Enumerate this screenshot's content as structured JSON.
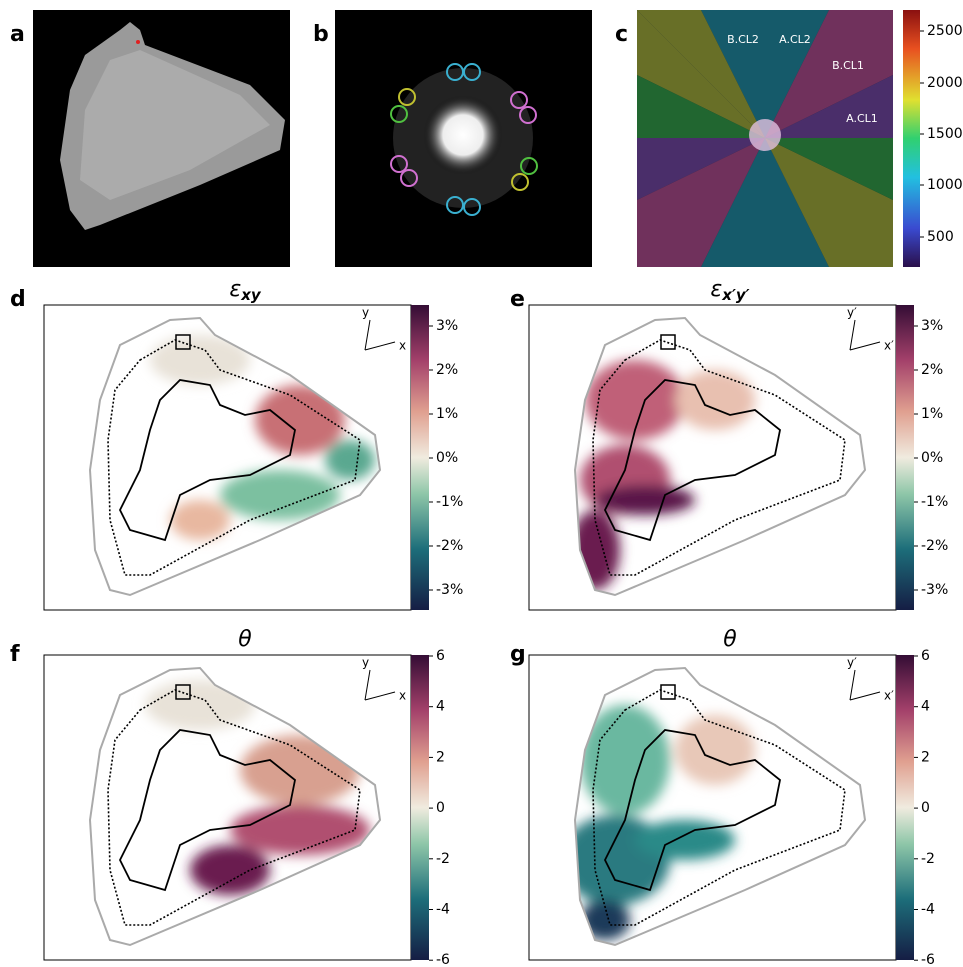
{
  "panels": [
    {
      "label": "a"
    },
    {
      "label": "b"
    },
    {
      "label": "c",
      "sectors": [
        "B.CL2",
        "A.CL2",
        "B.CL1",
        "A.CL1"
      ],
      "colorbar": [
        "2500",
        "2000",
        "1500",
        "1000",
        "500"
      ]
    },
    {
      "label": "d",
      "title": {
        "symbol": "ε",
        "subscript": "xy"
      },
      "axes": [
        "y",
        "x"
      ],
      "colorbar": [
        "3%",
        "2%",
        "1%",
        "0%",
        "-1%",
        "-2%",
        "-3%"
      ]
    },
    {
      "label": "e",
      "title": {
        "symbol": "ε",
        "subscript": "x′y′"
      },
      "axes": [
        "y′",
        "x′"
      ],
      "colorbar": [
        "3%",
        "2%",
        "1%",
        "0%",
        "-1%",
        "-2%",
        "-3%"
      ]
    },
    {
      "label": "f",
      "title": {
        "symbol": "θ"
      },
      "axes": [
        "y",
        "x"
      ],
      "colorbar": [
        "6",
        "4",
        "2",
        "0",
        "-2",
        "-4",
        "-6"
      ]
    },
    {
      "label": "g",
      "title": {
        "symbol": "θ"
      },
      "axes": [
        "y′",
        "x′"
      ],
      "colorbar": [
        "6",
        "4",
        "2",
        "0",
        "-2",
        "-4",
        "-6"
      ]
    }
  ]
}
